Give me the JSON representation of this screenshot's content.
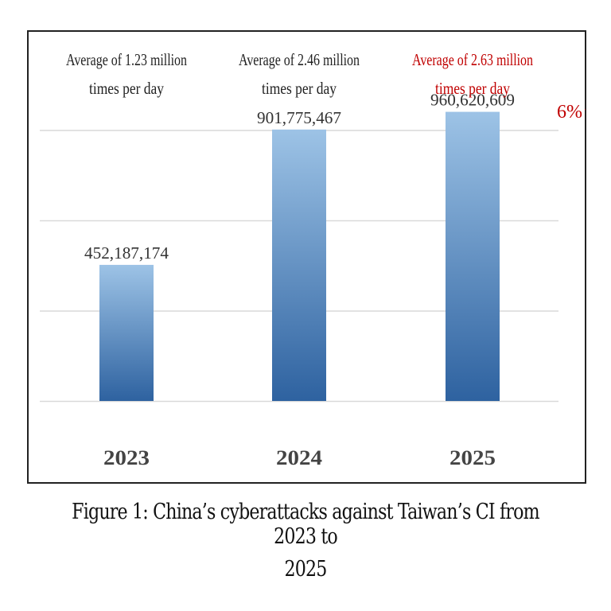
{
  "chart_data": {
    "type": "bar",
    "title": "Figure 1: China’s cyberattacks against Taiwan’s CI from 2023 to 2025",
    "categories": [
      "2023",
      "2024",
      "2025"
    ],
    "values": [
      452187174,
      901775467,
      960620609
    ],
    "value_labels": [
      "452,187,174",
      "901,775,467",
      "960,620,609"
    ],
    "annotations": [
      "Average of 1.23 million times per day",
      "Average of 2.46 million times per day",
      "Average of 2.63 million times per day"
    ],
    "annotation_lines": [
      [
        "Average of 1.23 million",
        "times per day"
      ],
      [
        "Average of 2.46 million",
        "times per day"
      ],
      [
        "Average of 2.63 million",
        "times per day"
      ]
    ],
    "highlight_index": 2,
    "growth_label": "6%↑",
    "xlabel": "",
    "ylabel": "",
    "ylim": [
      0,
      1200000000
    ],
    "grid": true,
    "colors": {
      "bar_top": "#9dc3e6",
      "bar_bottom": "#2e62a0",
      "highlight_text": "#c00000",
      "grid": "#d9d9d9",
      "text": "#222222"
    }
  },
  "caption": {
    "line1": "Figure 1: China’s cyberattacks against Taiwan’s CI from 2023 to",
    "line2": "2025"
  }
}
